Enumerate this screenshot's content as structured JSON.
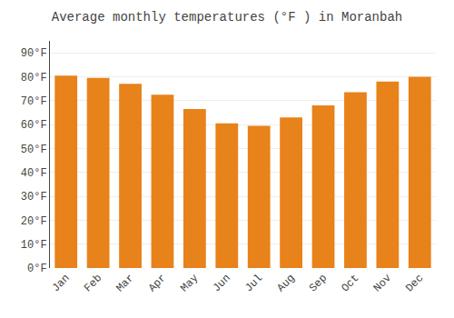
{
  "chart_data": {
    "type": "bar",
    "title": "Average monthly temperatures (°F ) in Moranbah",
    "categories": [
      "Jan",
      "Feb",
      "Mar",
      "Apr",
      "May",
      "Jun",
      "Jul",
      "Aug",
      "Sep",
      "Oct",
      "Nov",
      "Dec"
    ],
    "values": [
      80.5,
      79.5,
      77,
      72.5,
      66.5,
      60.5,
      59.5,
      63,
      68,
      73.5,
      78,
      80
    ],
    "color": "#E8821A",
    "ylim": [
      0,
      95
    ],
    "yticks": [
      {
        "value": 0,
        "label": "0°F"
      },
      {
        "value": 10,
        "label": "10°F"
      },
      {
        "value": 20,
        "label": "20°F"
      },
      {
        "value": 30,
        "label": "30°F"
      },
      {
        "value": 40,
        "label": "40°F"
      },
      {
        "value": 50,
        "label": "50°F"
      },
      {
        "value": 60,
        "label": "60°F"
      },
      {
        "value": 70,
        "label": "70°F"
      },
      {
        "value": 80,
        "label": "80°F"
      },
      {
        "value": 90,
        "label": "90°F"
      }
    ],
    "grid": true
  }
}
